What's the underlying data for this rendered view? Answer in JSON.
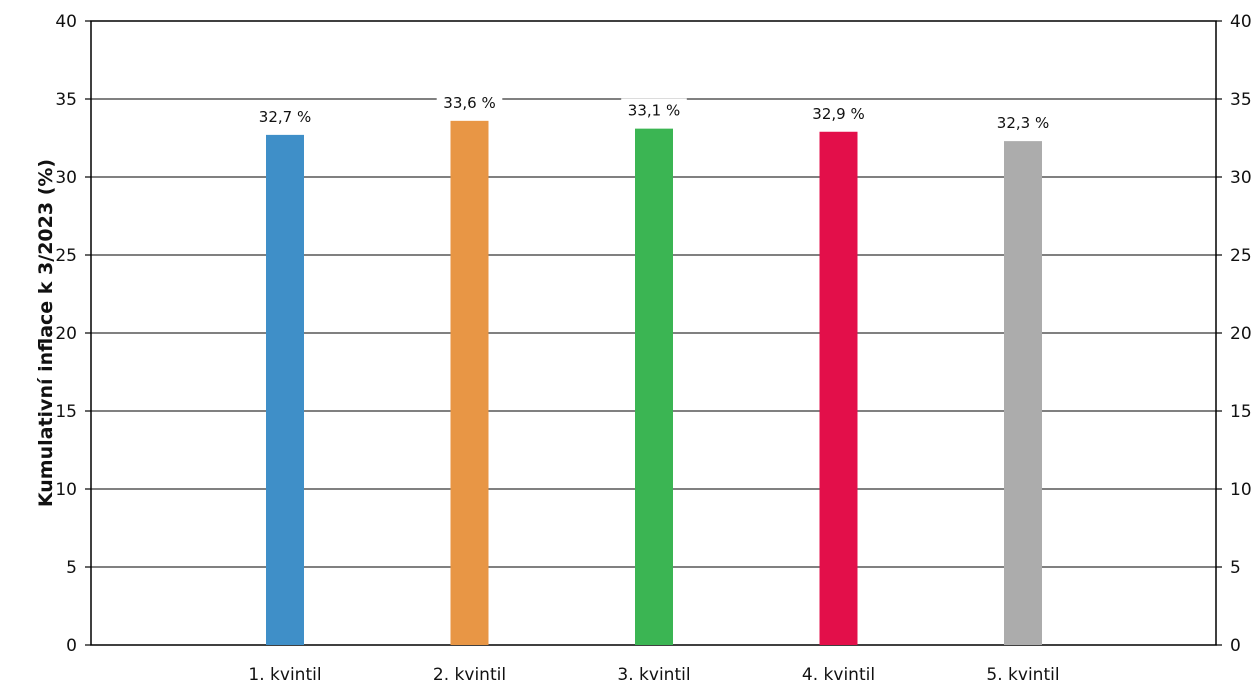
{
  "chart_data": {
    "type": "bar",
    "title": "",
    "xlabel": "",
    "ylabel": "Kumulativní inflace k 3/2023 (%)",
    "ylim": [
      0,
      40
    ],
    "yticks": [
      "0",
      "5",
      "10",
      "15",
      "20",
      "25",
      "30",
      "35",
      "40"
    ],
    "y2ticks": [
      "0",
      "5",
      "10",
      "15",
      "20",
      "25",
      "30",
      "35",
      "40"
    ],
    "categories": [
      "1. kvintil",
      "2. kvintil",
      "3. kvintil",
      "4. kvintil",
      "5. kvintil"
    ],
    "values": [
      32.7,
      33.6,
      33.1,
      32.9,
      32.3
    ],
    "value_labels": [
      "32,7 %",
      "33,6 %",
      "33,1 %",
      "32,9 %",
      "32,3 %"
    ],
    "colors": [
      "#3f8fc8",
      "#e89645",
      "#3bb553",
      "#e30f4a",
      "#acacac"
    ],
    "grid": true,
    "legend": "none"
  }
}
